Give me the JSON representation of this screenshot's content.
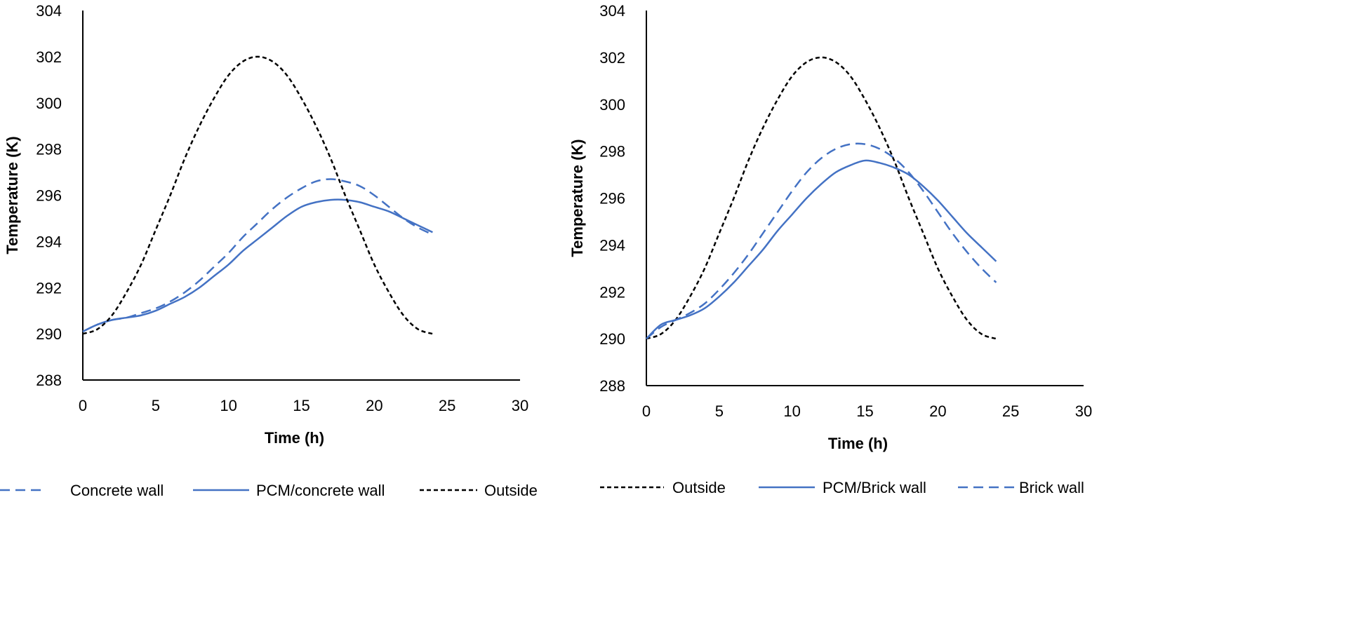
{
  "colors": {
    "blue": "#4472C4",
    "black": "#000000"
  },
  "chart_data": [
    {
      "type": "line",
      "xlabel": "Time (h)",
      "ylabel": "Temperature (K)",
      "xlim": [
        0,
        30
      ],
      "ylim": [
        288,
        304
      ],
      "xticks": [
        0,
        5,
        10,
        15,
        20,
        25,
        30
      ],
      "yticks": [
        288,
        290,
        292,
        294,
        296,
        298,
        300,
        302,
        304
      ],
      "legend_position": "bottom",
      "x": [
        0,
        1,
        2,
        3,
        4,
        5,
        6,
        7,
        8,
        9,
        10,
        11,
        12,
        13,
        14,
        15,
        16,
        17,
        18,
        19,
        20,
        21,
        22,
        23,
        24
      ],
      "series": [
        {
          "name": "Concrete wall",
          "style": "dashed",
          "color": "blue",
          "values": [
            290.1,
            290.4,
            290.6,
            290.7,
            290.9,
            291.1,
            291.4,
            291.8,
            292.3,
            292.9,
            293.5,
            294.2,
            294.8,
            295.4,
            295.9,
            296.3,
            296.6,
            296.7,
            296.6,
            296.4,
            296.0,
            295.5,
            295.0,
            294.6,
            294.3
          ]
        },
        {
          "name": "PCM/concrete wall",
          "style": "solid",
          "color": "blue",
          "values": [
            290.1,
            290.4,
            290.6,
            290.7,
            290.8,
            291.0,
            291.3,
            291.6,
            292.0,
            292.5,
            293.0,
            293.6,
            294.1,
            294.6,
            295.1,
            295.5,
            295.7,
            295.8,
            295.8,
            295.7,
            295.5,
            295.3,
            295.0,
            294.7,
            294.4
          ]
        },
        {
          "name": "Outside",
          "style": "dashed",
          "color": "black",
          "values": [
            290.0,
            290.2,
            290.8,
            291.8,
            293.0,
            294.5,
            296.0,
            297.6,
            299.0,
            300.2,
            301.2,
            301.8,
            302.0,
            301.8,
            301.2,
            300.2,
            299.0,
            297.6,
            296.0,
            294.5,
            293.0,
            291.8,
            290.8,
            290.2,
            290.0
          ]
        }
      ],
      "legend_order": [
        "Concrete wall",
        "PCM/concrete wall",
        "Outside"
      ]
    },
    {
      "type": "line",
      "xlabel": "Time (h)",
      "ylabel": "Temperature (K)",
      "xlim": [
        0,
        30
      ],
      "ylim": [
        288,
        304
      ],
      "xticks": [
        0,
        5,
        10,
        15,
        20,
        25,
        30
      ],
      "yticks": [
        288,
        290,
        292,
        294,
        296,
        298,
        300,
        302,
        304
      ],
      "legend_position": "bottom",
      "x": [
        0,
        1,
        2,
        3,
        4,
        5,
        6,
        7,
        8,
        9,
        10,
        11,
        12,
        13,
        14,
        15,
        16,
        17,
        18,
        19,
        20,
        21,
        22,
        23,
        24
      ],
      "series": [
        {
          "name": "Outside",
          "style": "dashed",
          "color": "black",
          "values": [
            290.0,
            290.2,
            290.8,
            291.8,
            293.0,
            294.5,
            296.0,
            297.6,
            299.0,
            300.2,
            301.2,
            301.8,
            302.0,
            301.8,
            301.2,
            300.2,
            299.0,
            297.6,
            296.0,
            294.5,
            293.0,
            291.8,
            290.8,
            290.2,
            290.0
          ]
        },
        {
          "name": "PCM/Brick wall",
          "style": "solid",
          "color": "blue",
          "values": [
            290.0,
            290.6,
            290.8,
            291.0,
            291.3,
            291.8,
            292.4,
            293.1,
            293.8,
            294.6,
            295.3,
            296.0,
            296.6,
            297.1,
            297.4,
            297.6,
            297.5,
            297.3,
            297.0,
            296.5,
            295.9,
            295.2,
            294.5,
            293.9,
            293.3
          ]
        },
        {
          "name": "Brick wall",
          "style": "dashed",
          "color": "blue",
          "values": [
            290.0,
            290.5,
            290.8,
            291.1,
            291.5,
            292.1,
            292.8,
            293.6,
            294.5,
            295.4,
            296.3,
            297.1,
            297.7,
            298.1,
            298.3,
            298.3,
            298.1,
            297.7,
            297.1,
            296.3,
            295.4,
            294.5,
            293.7,
            293.0,
            292.4
          ]
        }
      ],
      "legend_order": [
        "Outside",
        "PCM/Brick wall",
        "Brick wall"
      ]
    }
  ]
}
